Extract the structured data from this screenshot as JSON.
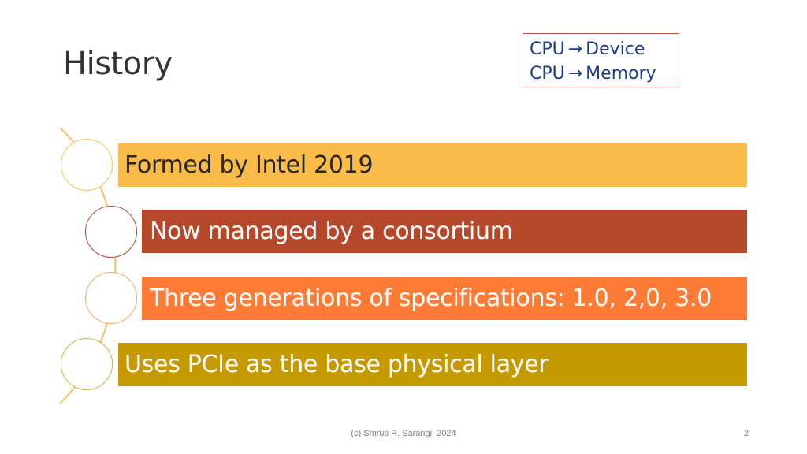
{
  "slide": {
    "title": "History",
    "note": {
      "line1": {
        "from": "CPU",
        "arrow": "→",
        "to": "Device"
      },
      "line2": {
        "from": "CPU",
        "arrow": "→",
        "to": "Memory"
      }
    },
    "items": [
      {
        "text": "Formed by Intel 2019",
        "color": "#fbbb48"
      },
      {
        "text": "Now managed by a consortium",
        "color": "#b5472a"
      },
      {
        "text": "Three generations of specifications: 1.0, 2,0, 3.0",
        "color": "#fd7b34"
      },
      {
        "text": "Uses PCIe as the base physical layer",
        "color": "#c59a00"
      }
    ],
    "footer": "(c) Smruti R. Sarangi, 2024",
    "page_number": "2"
  }
}
